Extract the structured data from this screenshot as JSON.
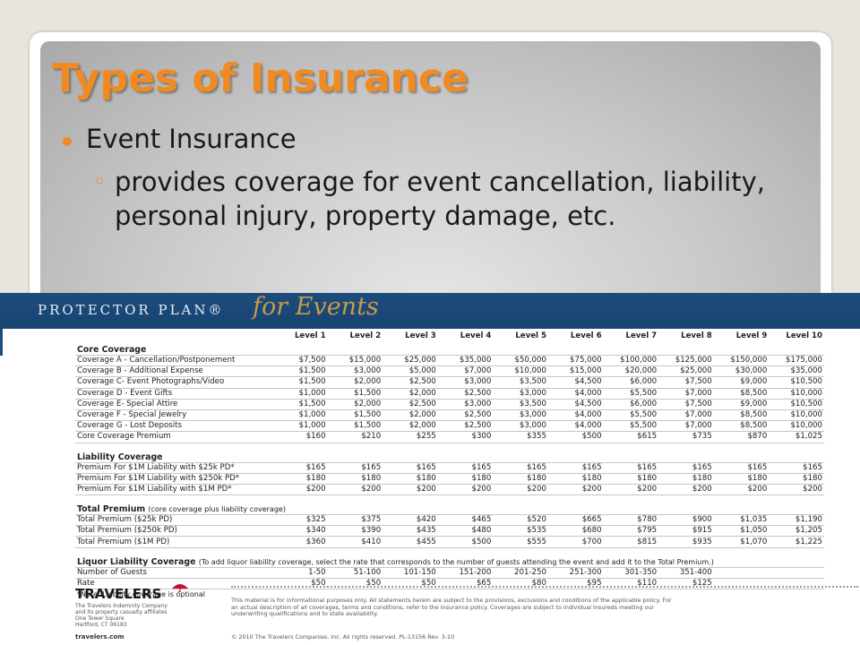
{
  "slide": {
    "title": "Types of Insurance",
    "bullet": "Event Insurance",
    "sub_bullet": "provides coverage for event cancellation, liability, personal injury, property damage, etc."
  },
  "document": {
    "brand": "PROTECTOR PLAN®",
    "script": "for Events",
    "levels": [
      "Level 1",
      "Level 2",
      "Level 3",
      "Level 4",
      "Level 5",
      "Level 6",
      "Level 7",
      "Level 8",
      "Level 9",
      "Level 10"
    ],
    "core": {
      "heading": "Core Coverage",
      "rows": [
        {
          "label": "Coverage A - Cancellation/Postponement",
          "values": [
            "$7,500",
            "$15,000",
            "$25,000",
            "$35,000",
            "$50,000",
            "$75,000",
            "$100,000",
            "$125,000",
            "$150,000",
            "$175,000"
          ]
        },
        {
          "label": "Coverage B - Additional Expense",
          "values": [
            "$1,500",
            "$3,000",
            "$5,000",
            "$7,000",
            "$10,000",
            "$15,000",
            "$20,000",
            "$25,000",
            "$30,000",
            "$35,000"
          ]
        },
        {
          "label": "Coverage C- Event Photographs/Video",
          "values": [
            "$1,500",
            "$2,000",
            "$2,500",
            "$3,000",
            "$3,500",
            "$4,500",
            "$6,000",
            "$7,500",
            "$9,000",
            "$10,500"
          ]
        },
        {
          "label": "Coverage D - Event Gifts",
          "values": [
            "$1,000",
            "$1,500",
            "$2,000",
            "$2,500",
            "$3,000",
            "$4,000",
            "$5,500",
            "$7,000",
            "$8,500",
            "$10,000"
          ]
        },
        {
          "label": "Coverage E- Special Attire",
          "values": [
            "$1,500",
            "$2,000",
            "$2,500",
            "$3,000",
            "$3,500",
            "$4,500",
            "$6,000",
            "$7,500",
            "$9,000",
            "$10,500"
          ]
        },
        {
          "label": "Coverage F - Special Jewelry",
          "values": [
            "$1,000",
            "$1,500",
            "$2,000",
            "$2,500",
            "$3,000",
            "$4,000",
            "$5,500",
            "$7,000",
            "$8,500",
            "$10,000"
          ]
        },
        {
          "label": "Coverage G - Lost Deposits",
          "values": [
            "$1,000",
            "$1,500",
            "$2,000",
            "$2,500",
            "$3,000",
            "$4,000",
            "$5,500",
            "$7,000",
            "$8,500",
            "$10,000"
          ]
        },
        {
          "label": "Core Coverage Premium",
          "values": [
            "$160",
            "$210",
            "$255",
            "$300",
            "$355",
            "$500",
            "$615",
            "$735",
            "$870",
            "$1,025"
          ]
        }
      ]
    },
    "liability": {
      "heading": "Liability Coverage",
      "rows": [
        {
          "label": "Premium For $1M Liability with $25k PD*",
          "values": [
            "$165",
            "$165",
            "$165",
            "$165",
            "$165",
            "$165",
            "$165",
            "$165",
            "$165",
            "$165"
          ]
        },
        {
          "label": "Premium For $1M Liability with $250k PD*",
          "values": [
            "$180",
            "$180",
            "$180",
            "$180",
            "$180",
            "$180",
            "$180",
            "$180",
            "$180",
            "$180"
          ]
        },
        {
          "label": "Premium For $1M Liability with $1M PD*",
          "values": [
            "$200",
            "$200",
            "$200",
            "$200",
            "$200",
            "$200",
            "$200",
            "$200",
            "$200",
            "$200"
          ]
        }
      ]
    },
    "total": {
      "heading": "Total Premium",
      "heading_note": "(core coverage plus liability coverage)",
      "rows": [
        {
          "label": "Total Premium ($25k PD)",
          "values": [
            "$325",
            "$375",
            "$420",
            "$465",
            "$520",
            "$665",
            "$780",
            "$900",
            "$1,035",
            "$1,190"
          ]
        },
        {
          "label": "Total Premium ($250k PD)",
          "values": [
            "$340",
            "$390",
            "$435",
            "$480",
            "$535",
            "$680",
            "$795",
            "$915",
            "$1,050",
            "$1,205"
          ]
        },
        {
          "label": "Total Premium ($1M PD)",
          "values": [
            "$360",
            "$410",
            "$455",
            "$500",
            "$555",
            "$700",
            "$815",
            "$935",
            "$1,070",
            "$1,225"
          ]
        }
      ]
    },
    "liquor": {
      "heading": "Liquor Liability Coverage",
      "heading_note": "(To add liquor liability coverage, select the rate that corresponds to the number of guests attending the event and add it to the Total Premium.)",
      "guests_label": "Number of Guests",
      "guests": [
        "1-50",
        "51-100",
        "101-150",
        "151-200",
        "201-250",
        "251-300",
        "301-350",
        "351-400"
      ],
      "rate_label": "Rate",
      "rates": [
        "$50",
        "$50",
        "$50",
        "$65",
        "$80",
        "$95",
        "$110",
        "$125"
      ]
    },
    "footnote": "*Note: Liability coverage is optional",
    "company": "TRAVELERS",
    "company_lines": "The Travelers Indemnity Company\nand its property casualty affiliates\nOne Tower Square\nHartford, CT 06183",
    "website": "travelers.com",
    "disclaimer": "This material is for informational purposes only. All statements herein are subject to the provisions, exclusions and conditions of the applicable policy. For an actual description of all coverages, terms and conditions, refer to the insurance policy. Coverages are subject to individual insureds meeting our underwriting qualifications and to state availability.",
    "copyright": "© 2010 The Travelers Companies, Inc. All rights reserved. PL-13156  Rev. 3-10"
  },
  "colors": {
    "accent": "#f08a22",
    "banner": "#1d4d7c",
    "script": "#c99a4a"
  }
}
